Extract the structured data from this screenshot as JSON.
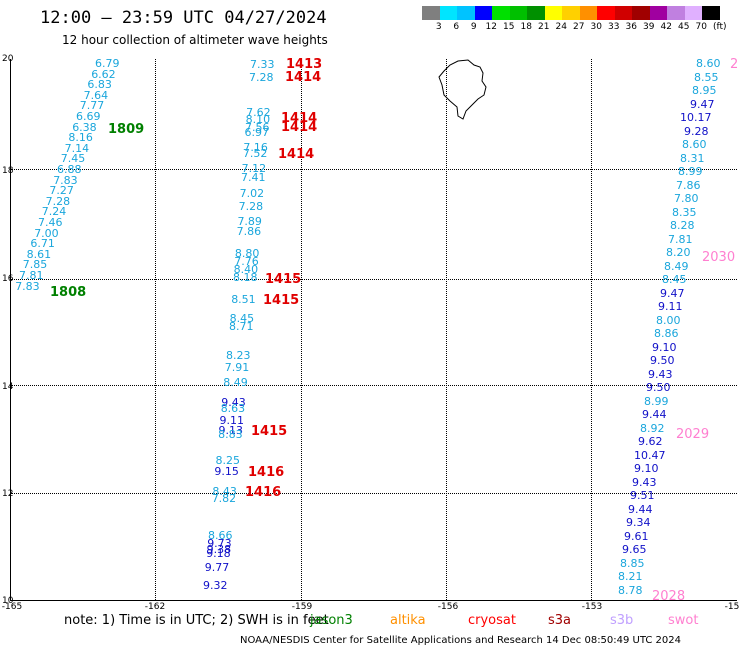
{
  "header": {
    "title": "12:00 – 23:59 UTC 04/27/2024",
    "subtitle": "12 hour collection of altimeter wave heights"
  },
  "colorbar": {
    "colors": [
      "#7f7f7f",
      "#00e5ff",
      "#00c3ff",
      "#0000ff",
      "#00e000",
      "#00c000",
      "#009000",
      "#ffff00",
      "#ffd000",
      "#ff9000",
      "#ff0000",
      "#d00000",
      "#a00000",
      "#a000a0",
      "#c080e0",
      "#e0b0ff",
      "#000000"
    ],
    "labels": [
      "3",
      "6",
      "9",
      "12",
      "15",
      "18",
      "21",
      "24",
      "27",
      "30",
      "33",
      "36",
      "39",
      "42",
      "45",
      "70"
    ],
    "unit": "(ft)"
  },
  "axes": {
    "y_ticks": [
      "20",
      "18",
      "16",
      "14",
      "12",
      "10"
    ],
    "x_ticks": [
      "-165",
      "-162",
      "-159",
      "-156",
      "-153",
      "-15"
    ]
  },
  "colors": {
    "cyan": "#1aa6dc",
    "blue": "#1010c8",
    "red": "#e00000",
    "green": "#008000",
    "pink": "#ff7fd0"
  },
  "tracks": {
    "left": [
      {
        "v": "6.79",
        "c": "cyan"
      },
      {
        "v": "6.62",
        "c": "cyan"
      },
      {
        "v": "6.83",
        "c": "cyan"
      },
      {
        "v": "7.64",
        "c": "cyan"
      },
      {
        "v": "7.77",
        "c": "cyan"
      },
      {
        "v": "6.69",
        "c": "cyan"
      },
      {
        "v": "6.38",
        "c": "cyan"
      },
      {
        "v": "8.16",
        "c": "cyan"
      },
      {
        "v": "7.14",
        "c": "cyan"
      },
      {
        "v": "7.45",
        "c": "cyan"
      },
      {
        "v": "6.88",
        "c": "cyan"
      },
      {
        "v": "7.83",
        "c": "cyan"
      },
      {
        "v": "7.27",
        "c": "cyan"
      },
      {
        "v": "7.28",
        "c": "cyan"
      },
      {
        "v": "7.24",
        "c": "cyan"
      },
      {
        "v": "7.46",
        "c": "cyan"
      },
      {
        "v": "7.00",
        "c": "cyan"
      },
      {
        "v": "6.71",
        "c": "cyan"
      },
      {
        "v": "8.61",
        "c": "cyan"
      },
      {
        "v": "7.85",
        "c": "cyan"
      },
      {
        "v": "7.81",
        "c": "cyan"
      },
      {
        "v": "7.83",
        "c": "cyan"
      }
    ],
    "middle": [
      {
        "v": "7.33",
        "c": "cyan"
      },
      {
        "v": "7.28",
        "c": "cyan"
      },
      {
        "v": "7.62",
        "c": "cyan"
      },
      {
        "v": "8.10",
        "c": "cyan"
      },
      {
        "v": "7.56",
        "c": "cyan"
      },
      {
        "v": "6.97",
        "c": "cyan"
      },
      {
        "v": "7.16",
        "c": "cyan"
      },
      {
        "v": "7.52",
        "c": "cyan"
      },
      {
        "v": "7.12",
        "c": "cyan"
      },
      {
        "v": "7.41",
        "c": "cyan"
      },
      {
        "v": "7.02",
        "c": "cyan"
      },
      {
        "v": "7.28",
        "c": "cyan"
      },
      {
        "v": "7.89",
        "c": "cyan"
      },
      {
        "v": "7.86",
        "c": "cyan"
      },
      {
        "v": "8.80",
        "c": "cyan"
      },
      {
        "v": "7.76",
        "c": "cyan"
      },
      {
        "v": "8.40",
        "c": "cyan"
      },
      {
        "v": "8.18",
        "c": "cyan"
      },
      {
        "v": "8.51",
        "c": "cyan"
      },
      {
        "v": "8.45",
        "c": "cyan"
      },
      {
        "v": "8.71",
        "c": "cyan"
      },
      {
        "v": "8.23",
        "c": "cyan"
      },
      {
        "v": "7.91",
        "c": "cyan"
      },
      {
        "v": "8.49",
        "c": "cyan"
      },
      {
        "v": "9.43",
        "c": "blue"
      },
      {
        "v": "8.63",
        "c": "cyan"
      },
      {
        "v": "9.11",
        "c": "blue"
      },
      {
        "v": "9.13",
        "c": "blue"
      },
      {
        "v": "8.83",
        "c": "cyan"
      },
      {
        "v": "8.25",
        "c": "cyan"
      },
      {
        "v": "9.15",
        "c": "blue"
      },
      {
        "v": "8.43",
        "c": "cyan"
      },
      {
        "v": "7.82",
        "c": "cyan"
      },
      {
        "v": "8.66",
        "c": "cyan"
      },
      {
        "v": "9.73",
        "c": "blue"
      },
      {
        "v": "9.38",
        "c": "blue"
      },
      {
        "v": "9.18",
        "c": "blue"
      },
      {
        "v": "9.77",
        "c": "blue"
      },
      {
        "v": "9.32",
        "c": "blue"
      }
    ],
    "right": [
      {
        "v": "8.60",
        "c": "cyan"
      },
      {
        "v": "8.55",
        "c": "cyan"
      },
      {
        "v": "8.95",
        "c": "cyan"
      },
      {
        "v": "9.47",
        "c": "blue"
      },
      {
        "v": "10.17",
        "c": "blue"
      },
      {
        "v": "9.28",
        "c": "blue"
      },
      {
        "v": "8.60",
        "c": "cyan"
      },
      {
        "v": "8.31",
        "c": "cyan"
      },
      {
        "v": "8.99",
        "c": "cyan"
      },
      {
        "v": "7.86",
        "c": "cyan"
      },
      {
        "v": "7.80",
        "c": "cyan"
      },
      {
        "v": "8.35",
        "c": "cyan"
      },
      {
        "v": "8.28",
        "c": "cyan"
      },
      {
        "v": "7.81",
        "c": "cyan"
      },
      {
        "v": "8.20",
        "c": "cyan"
      },
      {
        "v": "8.49",
        "c": "cyan"
      },
      {
        "v": "8.45",
        "c": "cyan"
      },
      {
        "v": "9.47",
        "c": "blue"
      },
      {
        "v": "9.11",
        "c": "blue"
      },
      {
        "v": "8.00",
        "c": "cyan"
      },
      {
        "v": "8.86",
        "c": "cyan"
      },
      {
        "v": "9.10",
        "c": "blue"
      },
      {
        "v": "9.50",
        "c": "blue"
      },
      {
        "v": "9.43",
        "c": "blue"
      },
      {
        "v": "9.50",
        "c": "blue"
      },
      {
        "v": "8.99",
        "c": "cyan"
      },
      {
        "v": "9.44",
        "c": "blue"
      },
      {
        "v": "8.92",
        "c": "cyan"
      },
      {
        "v": "9.62",
        "c": "blue"
      },
      {
        "v": "10.47",
        "c": "blue"
      },
      {
        "v": "9.10",
        "c": "blue"
      },
      {
        "v": "9.43",
        "c": "blue"
      },
      {
        "v": "9.51",
        "c": "blue"
      },
      {
        "v": "9.44",
        "c": "blue"
      },
      {
        "v": "9.34",
        "c": "blue"
      },
      {
        "v": "9.61",
        "c": "blue"
      },
      {
        "v": "9.65",
        "c": "blue"
      },
      {
        "v": "8.85",
        "c": "cyan"
      },
      {
        "v": "8.21",
        "c": "cyan"
      },
      {
        "v": "8.78",
        "c": "cyan"
      }
    ]
  },
  "time_tags": [
    {
      "t": "1809",
      "c": "green"
    },
    {
      "t": "1808",
      "c": "green"
    },
    {
      "t": "1413",
      "c": "red"
    },
    {
      "t": "1414",
      "c": "red"
    },
    {
      "t": "1414",
      "c": "red"
    },
    {
      "t": "1414",
      "c": "red"
    },
    {
      "t": "1414",
      "c": "red"
    },
    {
      "t": "1415",
      "c": "red"
    },
    {
      "t": "1415",
      "c": "red"
    },
    {
      "t": "1415",
      "c": "red"
    },
    {
      "t": "1416",
      "c": "red"
    },
    {
      "t": "1416",
      "c": "red"
    },
    {
      "t": "2",
      "c": "pink"
    },
    {
      "t": "2030",
      "c": "pink"
    },
    {
      "t": "2029",
      "c": "pink"
    },
    {
      "t": "2028",
      "c": "pink"
    }
  ],
  "footer": {
    "note": "note:  1) Time is in UTC; 2) SWH is in feet",
    "legend": [
      {
        "label": "jason3",
        "color": "#008000"
      },
      {
        "label": "altika",
        "color": "#ff9000"
      },
      {
        "label": "cryosat",
        "color": "#ff0000"
      },
      {
        "label": "s3a",
        "color": "#a00000"
      },
      {
        "label": "s3b",
        "color": "#c0a0ff"
      },
      {
        "label": "swot",
        "color": "#ff80d0"
      }
    ],
    "credit": "NOAA/NESDIS Center for Satellite Applications and Research    14 Dec 08:50:49 UTC 2024"
  }
}
